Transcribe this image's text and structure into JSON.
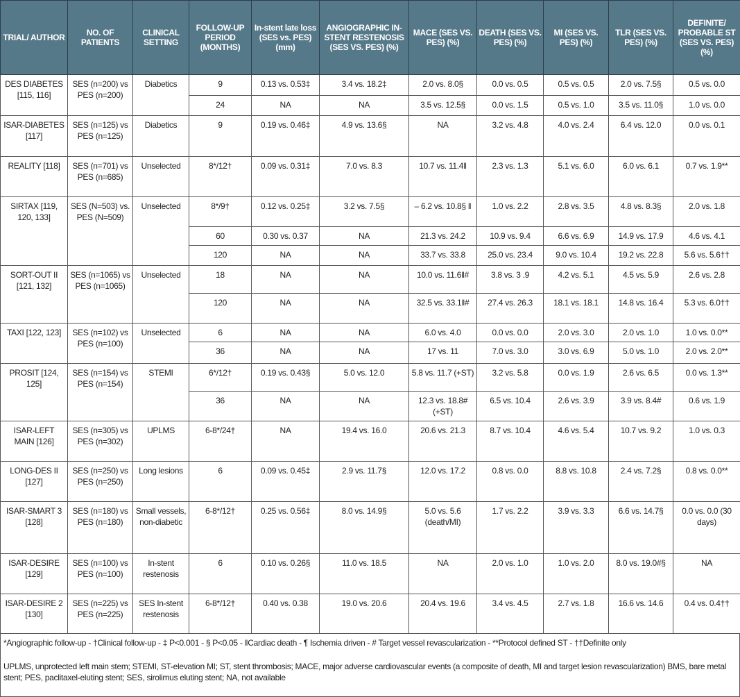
{
  "headers": [
    "TRIAL/ AUTHOR",
    "NO. OF PATIENTS",
    "CLINICAL SETTING",
    "FOLLOW-UP PERIOD (MONTHS)",
    "In-stent late loss (SES vs. PES) (mm)",
    "ANGIOGRAPHIC IN-STENT RESTENOSIS (SES VS. PES) (%)",
    "MACE (SES VS. PES) (%)",
    "DEATH (SES VS. PES) (%)",
    "MI (SES VS. PES) (%)",
    "TLR (SES VS. PES) (%)",
    "DEFINITE/ PROBABLE ST (SES VS. PES) (%)"
  ],
  "trials": [
    {
      "trial": "DES DIABETES [115, 116]",
      "patients": "SES (n=200) vs PES (n=200)",
      "setting": "Diabetics",
      "rows": [
        [
          "9",
          "0.13 vs. 0.53‡",
          "3.4 vs. 18.2‡",
          "2.0 vs. 8.0§",
          "0.0 vs. 0.5",
          "0.5 vs. 0.5",
          "2.0 vs. 7.5§",
          "0.5 vs. 0.0"
        ],
        [
          "24",
          "NA",
          "NA",
          "3.5 vs. 12.5§",
          "0.0 vs. 1.5",
          "0.5 vs. 1.0",
          "3.5 vs. 11.0§",
          "1.0 vs. 0.0"
        ]
      ]
    },
    {
      "trial": "ISAR-DIABETES [117]",
      "patients": "SES (n=125) vs PES (n=125)",
      "setting": "Diabetics",
      "rows": [
        [
          "9",
          "0.19 vs. 0.46‡",
          "4.9 vs. 13.6§",
          "NA",
          "3.2 vs. 4.8",
          "4.0 vs. 2.4",
          "6.4 vs. 12.0",
          "0.0 vs. 0.1"
        ]
      ]
    },
    {
      "trial": "REALITY [118]",
      "patients": "SES (n=701) vs PES (n=685)",
      "setting": "Unselected",
      "rows": [
        [
          "8*/12†",
          "0.09 vs. 0.31‡",
          "7.0 vs. 8.3",
          "10.7 vs. 11.4‖",
          "2.3 vs. 1.3",
          "5.1 vs. 6.0",
          "6.0 vs. 6.1",
          "0.7 vs. 1.9**"
        ]
      ]
    },
    {
      "trial": "SIRTAX [119, 120, 133]",
      "patients": "SES (N=503) vs. PES (N=509)",
      "setting": "Unselected",
      "rows": [
        [
          "8*/9†",
          "0.12 vs. 0.25‡",
          "3.2 vs. 7.5§",
          "– 6.2 vs. 10.8§ ‖",
          "1.0 vs. 2.2",
          "2.8 vs. 3.5",
          "4.8 vs. 8.3§",
          "2.0 vs. 1.8"
        ],
        [
          "60",
          "0.30 vs. 0.37",
          "NA",
          "21.3 vs. 24.2",
          "10.9 vs. 9.4",
          "6.6 vs. 6.9",
          "14.9 vs. 17.9",
          "4.6 vs. 4.1"
        ],
        [
          "120",
          "NA",
          "NA",
          "33.7 vs. 33.8",
          "25.0 vs. 23.4",
          "9.0 vs. 10.4",
          "19.2 vs. 22.8",
          "5.6 vs. 5.6††"
        ]
      ]
    },
    {
      "trial": "SORT-OUT II [121, 132]",
      "patients": "SES (n=1065) vs PES (n=1065)",
      "setting": "Unselected",
      "rows": [
        [
          "18",
          "NA",
          "NA",
          "10.0 vs. 11.6‖#",
          "3.8 vs. 3 .9",
          "4.2 vs. 5.1",
          "4.5 vs. 5.9",
          "2.6 vs. 2.8"
        ],
        [
          "120",
          "NA",
          "NA",
          "32.5 vs. 33.1‖#",
          "27.4 vs. 26.3",
          "18.1 vs. 18.1",
          "14.8 vs. 16.4",
          "5.3 vs. 6.0††"
        ]
      ]
    },
    {
      "trial": "TAXI [122, 123]",
      "patients": "SES (n=102) vs PES (n=100)",
      "setting": "Unselected",
      "rows": [
        [
          "6",
          "NA",
          "NA",
          "6.0 vs. 4.0",
          "0.0 vs. 0.0",
          "2.0 vs. 3.0",
          "2.0 vs. 1.0",
          "1.0 vs. 0.0**"
        ],
        [
          "36",
          "NA",
          "NA",
          "17 vs. 11",
          "7.0 vs. 3.0",
          "3.0 vs. 6.9",
          "5.0 vs. 1.0",
          "2.0 vs. 2.0**"
        ]
      ]
    },
    {
      "trial": "PROSIT [124, 125]",
      "patients": "SES (n=154) vs PES (n=154)",
      "setting": "STEMI",
      "rows": [
        [
          "6*/12†",
          "0.19 vs. 0.43§",
          "5.0 vs. 12.0",
          "5.8 vs. 11.7 (+ST)",
          "3.2 vs. 5.8",
          "0.0 vs. 1.9",
          "2.6 vs. 6.5",
          "0.0 vs. 1.3**"
        ],
        [
          "36",
          "NA",
          "NA",
          "12.3 vs. 18.8# (+ST)",
          "6.5 vs. 10.4",
          "2.6 vs. 3.9",
          "3.9 vs. 8.4#",
          "0.6 vs. 1.9"
        ]
      ]
    },
    {
      "trial": "ISAR-LEFT MAIN [126]",
      "patients": "SES (n=305) vs PES (n=302)",
      "setting": "UPLMS",
      "rows": [
        [
          "6-8*/24†",
          "NA",
          "19.4 vs. 16.0",
          "20.6 vs. 21.3",
          "8.7 vs. 10.4",
          "4.6 vs. 5.4",
          "10.7 vs. 9.2",
          "1.0 vs. 0.3"
        ]
      ]
    },
    {
      "trial": "LONG-DES II [127]",
      "patients": "SES (n=250) vs PES (n=250)",
      "setting": "Long lesions",
      "rows": [
        [
          "6",
          "0.09 vs. 0.45‡",
          "2.9 vs. 11.7§",
          "12.0 vs. 17.2",
          "0.8 vs. 0.0",
          "8.8 vs. 10.8",
          "2.4 vs. 7.2§",
          "0.8 vs. 0.0**"
        ]
      ]
    },
    {
      "trial": "ISAR-SMART 3 [128]",
      "patients": "SES (n=180) vs PES (n=180)",
      "setting": "Small vessels, non-diabetic",
      "rows": [
        [
          "6-8*/12†",
          "0.25 vs. 0.56‡",
          "8.0 vs. 14.9§",
          "5.0 vs. 5.6 (death/MI)",
          "1.7 vs. 2.2",
          "3.9 vs. 3.3",
          "6.6 vs. 14.7§",
          "0.0 vs. 0.0 (30 days)"
        ]
      ]
    },
    {
      "trial": "ISAR-DESIRE [129]",
      "patients": "SES (n=100) vs PES (n=100)",
      "setting": "In-stent restenosis",
      "rows": [
        [
          "6",
          "0.10 vs. 0.26§",
          "11.0 vs. 18.5",
          "NA",
          "2.0 vs. 1.0",
          "1.0 vs. 2.0",
          "8.0 vs. 19.0#§",
          "NA"
        ]
      ]
    },
    {
      "trial": "ISAR-DESIRE 2 [130]",
      "patients": "SES (n=225) vs PES (n=225)",
      "setting": "SES In-stent restenosis",
      "rows": [
        [
          "6-8*/12†",
          "0.40 vs. 0.38",
          "19.0 vs. 20.6",
          "20.4 vs. 19.6",
          "3.4 vs. 4.5",
          "2.7 vs. 1.8",
          "16.6 vs. 14.6",
          "0.4 vs. 0.4††"
        ]
      ]
    }
  ],
  "footnotes": {
    "symbols": "*Angiographic follow-up - †Clinical follow-up - ‡ P<0.001 - § P<0.05 - ‖Cardiac death - ¶ Ischemia driven - # Target vessel revascularization - **Protocol defined ST - ††Definite only",
    "abbreviations": "UPLMS, unprotected left main stem; STEMI, ST-elevation MI; ST, stent thrombosis; MACE, major adverse cardiovascular events (a composite of death, MI and target lesion revascularization) BMS, bare metal stent; PES, paclitaxel-eluting stent; SES, sirolimus eluting stent; NA, not available"
  }
}
